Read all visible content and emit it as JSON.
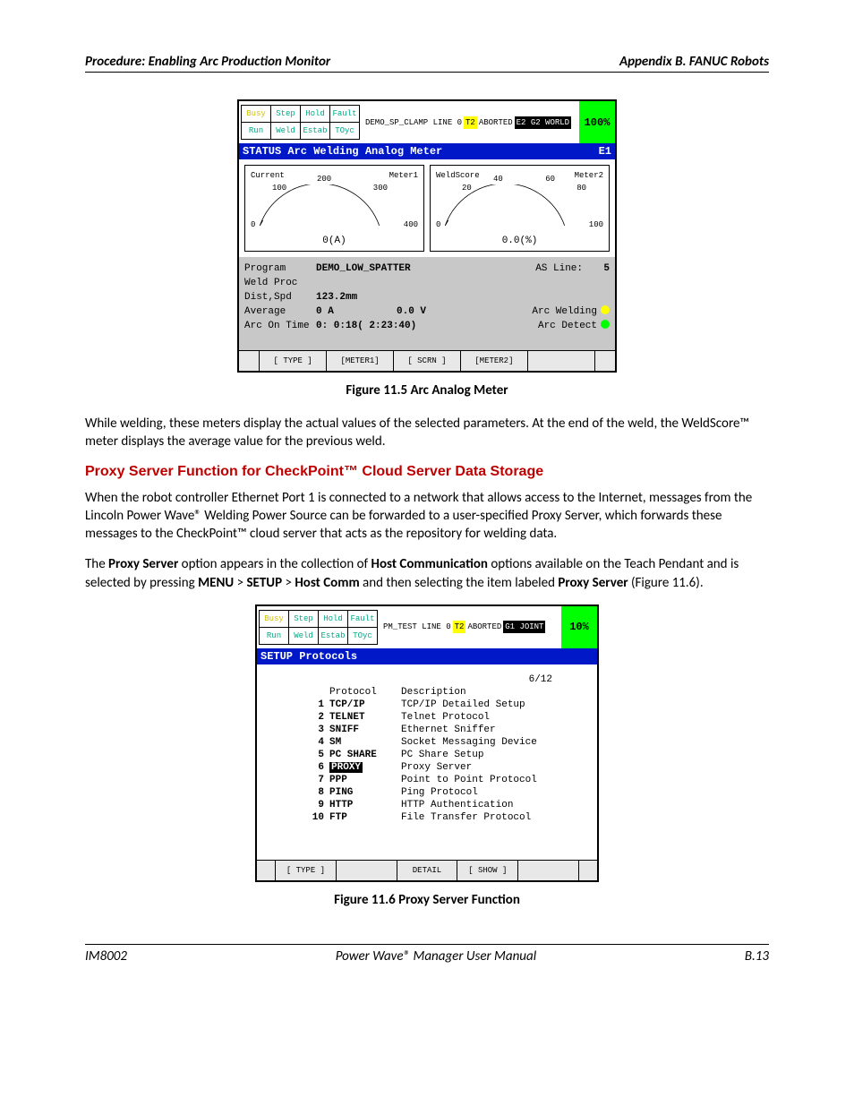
{
  "header": {
    "left": "Procedure: Enabling Arc Production Monitor",
    "right": "Appendix B. FANUC Robots"
  },
  "footer": {
    "left": "IM8002",
    "center": "Power Wave® Manager User Manual",
    "right": "B.13"
  },
  "fig1": {
    "caption": "Figure 11.5   Arc Analog Meter",
    "status": {
      "r1": [
        "Busy",
        "Step",
        "Hold",
        "Fault"
      ],
      "r2": [
        "Run",
        "Weld",
        "Estab",
        "TOyc"
      ]
    },
    "msgbar": {
      "prog": "DEMO_SP_CLAMP LINE 0",
      "t": "T2",
      "ab": "ABORTED",
      "mode": "E2 G2 WORLD"
    },
    "pct": "100%",
    "bluebar": {
      "l": "STATUS Arc Welding Analog Meter",
      "r": "E1"
    },
    "meter1": {
      "tl": "Current",
      "tr": "Meter1",
      "ticks": [
        "0",
        "100",
        "200",
        "300",
        "400"
      ],
      "val": "0(A)"
    },
    "meter2": {
      "tl": "WeldScore",
      "tr": "Meter2",
      "ticks": [
        "0",
        "20",
        "40",
        "60",
        "80",
        "100"
      ],
      "val": "0.0(%)"
    },
    "gray": {
      "program_l": "Program",
      "program_v": "DEMO_LOW_SPATTER",
      "asline_l": "AS Line:",
      "asline_v": "5",
      "weldproc_l": "Weld Proc",
      "dist_l": "Dist,Spd",
      "dist_v": "123.2mm",
      "avg_l": "Average",
      "avg_a": "0   A",
      "avg_v": "0.0  V",
      "arcw_l": "Arc Welding",
      "arcd_l": "Arc Detect",
      "aot_l": "Arc On Time",
      "aot_v": "0: 0:18( 2:23:40)"
    },
    "btns": [
      "[ TYPE ]",
      "[METER1]",
      "[ SCRN ]",
      "[METER2]",
      ""
    ]
  },
  "para1": "While welding, these meters display the actual values of the selected parameters.  At the end of the weld, the WeldScore™ meter displays the average value for the previous weld.",
  "h2": "Proxy Server Function for CheckPoint™ Cloud Server Data Storage",
  "para2": "When the robot controller Ethernet Port 1 is connected to a network that allows access to the Internet, messages from the Lincoln Power Wave® Welding Power Source can be forwarded to a user-specified Proxy Server, which forwards these messages to the CheckPoint™ cloud server that acts as the repository for welding data.",
  "para3a": "The ",
  "para3b": "Proxy Server",
  "para3c": " option appears in the collection of ",
  "para3d": "Host Communication",
  "para3e": " options available on the Teach Pendant and is selected by pressing ",
  "para3f": "MENU",
  "para3g": " > ",
  "para3h": "SETUP",
  "para3i": " > ",
  "para3j": "Host Comm",
  "para3k": " and then selecting the item labeled ",
  "para3l": "Proxy Server",
  "para3m": " (Figure 11.6).",
  "fig2": {
    "caption": "Figure 11.6   Proxy Server Function",
    "status": {
      "r1": [
        "Busy",
        "Step",
        "Hold",
        "Fault"
      ],
      "r2": [
        "Run",
        "Weld",
        "Estab",
        "TOyc"
      ]
    },
    "msgbar": {
      "prog": "PM_TEST LINE 0",
      "t": "T2",
      "ab": "ABORTED",
      "mode": "G1 JOINT"
    },
    "pct": "10%",
    "bluebar": {
      "l": "SETUP Protocols",
      "r": ""
    },
    "count": "6/12",
    "hd": {
      "p": "Protocol",
      "d": "Description"
    },
    "rows": [
      {
        "n": "1",
        "p": "TCP/IP",
        "d": "TCP/IP Detailed Setup"
      },
      {
        "n": "2",
        "p": "TELNET",
        "d": "Telnet Protocol"
      },
      {
        "n": "3",
        "p": "SNIFF",
        "d": "Ethernet Sniffer"
      },
      {
        "n": "4",
        "p": "SM",
        "d": "Socket Messaging Device"
      },
      {
        "n": "5",
        "p": "PC SHARE",
        "d": "PC Share Setup"
      },
      {
        "n": "6",
        "p": "PROXY",
        "d": "Proxy Server",
        "sel": true
      },
      {
        "n": "7",
        "p": "PPP",
        "d": "Point to Point Protocol"
      },
      {
        "n": "8",
        "p": "PING",
        "d": "Ping Protocol"
      },
      {
        "n": "9",
        "p": "HTTP",
        "d": "HTTP Authentication"
      },
      {
        "n": "10",
        "p": "FTP",
        "d": "File Transfer Protocol"
      }
    ],
    "btns": [
      "[ TYPE ]",
      "",
      "DETAIL",
      "[ SHOW ]",
      ""
    ]
  }
}
